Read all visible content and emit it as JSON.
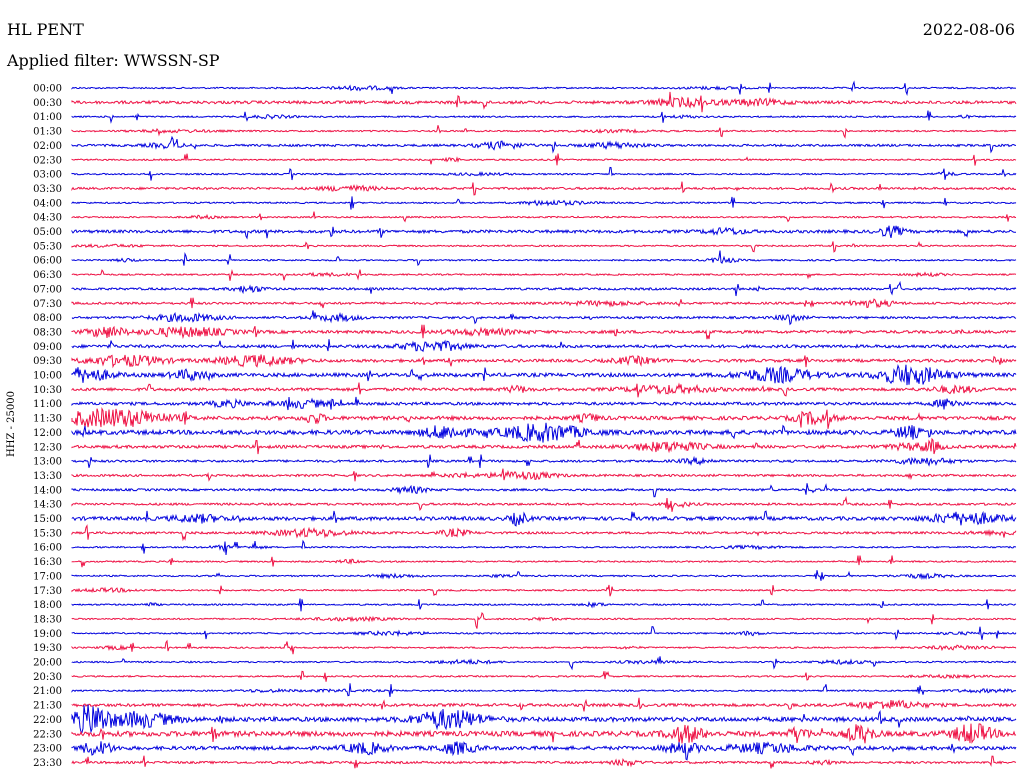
{
  "header": {
    "station": "HL PENT",
    "date": "2022-08-06",
    "filter": "Applied filter: WWSSN-SP"
  },
  "chart_data": {
    "type": "helicorder",
    "station": "HL PENT",
    "date": "2022-08-06",
    "filter": "WWSSN-SP",
    "ylabel": "HHZ - 25000",
    "row_interval_minutes": 30,
    "rows": [
      "00:00",
      "00:30",
      "01:00",
      "01:30",
      "02:00",
      "02:30",
      "03:00",
      "03:30",
      "04:00",
      "04:30",
      "05:00",
      "05:30",
      "06:00",
      "06:30",
      "07:00",
      "07:30",
      "08:00",
      "08:30",
      "09:00",
      "09:30",
      "10:00",
      "10:30",
      "11:00",
      "11:30",
      "12:00",
      "12:30",
      "13:00",
      "13:30",
      "14:00",
      "14:30",
      "15:00",
      "15:30",
      "16:00",
      "16:30",
      "17:00",
      "17:30",
      "18:00",
      "18:30",
      "19:00",
      "19:30",
      "20:00",
      "20:30",
      "21:00",
      "21:30",
      "22:00",
      "22:30",
      "23:00",
      "23:30"
    ],
    "noise_level": [
      1,
      3,
      1,
      1,
      2,
      1,
      1,
      2,
      1,
      1,
      3,
      1,
      1,
      1,
      2,
      2,
      2,
      3,
      3,
      3,
      4,
      3,
      3,
      4,
      5,
      3,
      2,
      2,
      2,
      2,
      4,
      2,
      1,
      1,
      1,
      1,
      1,
      1,
      1,
      1,
      1,
      1,
      1,
      3,
      5,
      6,
      4,
      2
    ],
    "colors": {
      "even_rows": "#0000dd",
      "odd_rows": "#ee1144"
    }
  }
}
